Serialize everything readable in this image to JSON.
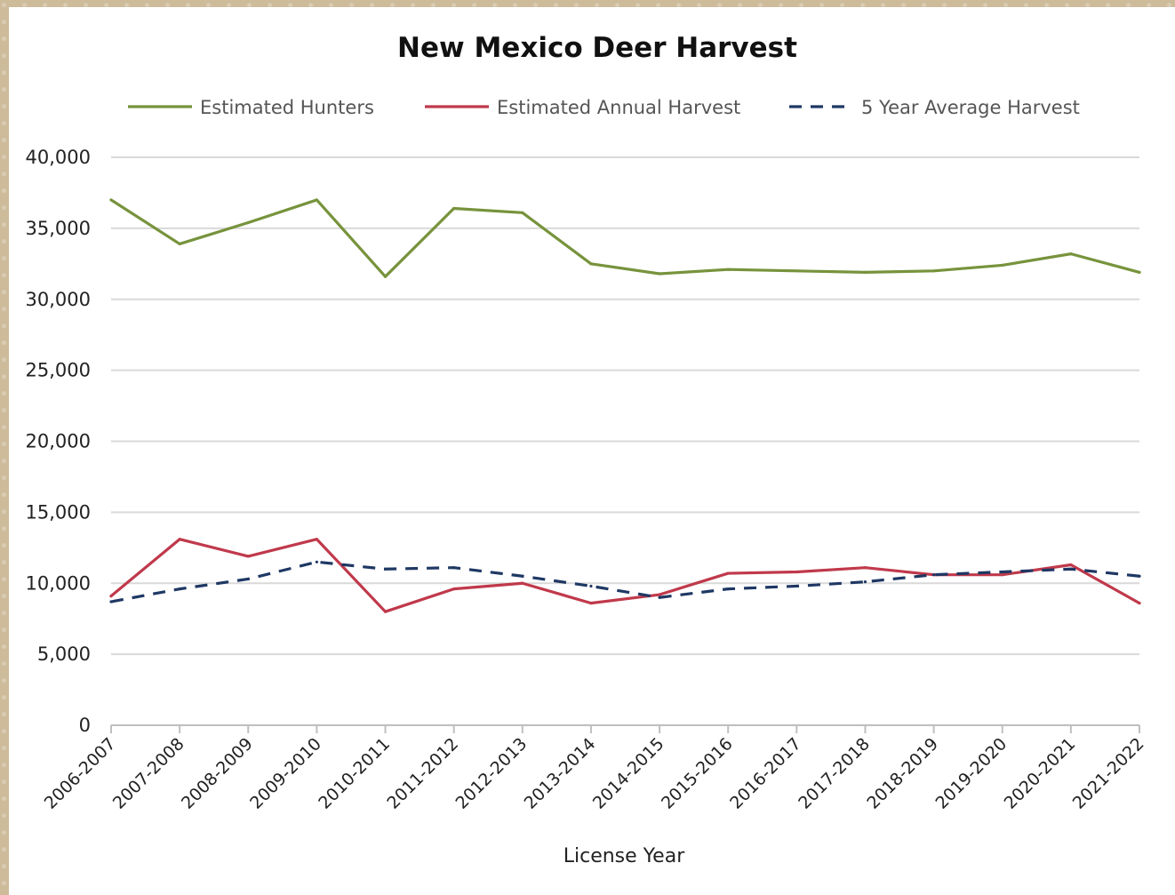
{
  "chart_data": {
    "type": "line",
    "title": "New Mexico Deer Harvest",
    "xlabel": "License Year",
    "ylabel": "",
    "ylim": [
      0,
      40000
    ],
    "yticks": [
      0,
      5000,
      10000,
      15000,
      20000,
      25000,
      30000,
      35000,
      40000
    ],
    "ytick_labels": [
      "0",
      "5,000",
      "10,000",
      "15,000",
      "20,000",
      "25,000",
      "30,000",
      "35,000",
      "40,000"
    ],
    "grid": true,
    "legend_position": "top",
    "categories": [
      "2006-2007",
      "2007-2008",
      "2008-2009",
      "2009-2010",
      "2010-2011",
      "2011-2012",
      "2012-2013",
      "2013-2014",
      "2014-2015",
      "2015-2016",
      "2016-2017",
      "2017-2018",
      "2018-2019",
      "2019-2020",
      "2020-2021",
      "2021-2022"
    ],
    "series": [
      {
        "name": "Estimated Hunters",
        "color": "#77933c",
        "dash": "solid",
        "values": [
          37000,
          33900,
          35400,
          37000,
          31600,
          36400,
          36100,
          32500,
          31800,
          32100,
          32000,
          31900,
          32000,
          32400,
          33200,
          31900
        ]
      },
      {
        "name": "Estimated Annual Harvest",
        "color": "#c0394b",
        "dash": "solid",
        "values": [
          9100,
          13100,
          11900,
          13100,
          8000,
          9600,
          10000,
          8600,
          9200,
          10700,
          10800,
          11100,
          10600,
          10600,
          11300,
          8600
        ]
      },
      {
        "name": "5 Year Average Harvest",
        "color": "#1f3864",
        "dash": "dashed",
        "values": [
          8700,
          9600,
          10300,
          11500,
          11000,
          11100,
          10500,
          9800,
          9000,
          9600,
          9800,
          10100,
          10600,
          10800,
          11000,
          10500
        ]
      }
    ]
  }
}
